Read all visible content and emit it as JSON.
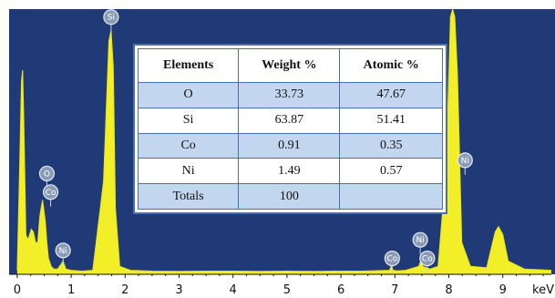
{
  "chart_data": {
    "type": "line",
    "title": "",
    "xlabel": "keV",
    "ylabel": "",
    "xlim": [
      -0.15,
      9.9
    ],
    "ylim": [
      0,
      100
    ],
    "x_ticks": [
      0,
      1,
      2,
      3,
      4,
      5,
      6,
      7,
      8,
      9
    ],
    "x_unit_label": "keV",
    "grid": false,
    "background_color": "#203a78",
    "series_color": "#f2ef28",
    "series": [
      {
        "x": [
          0.0,
          0.04,
          0.08,
          0.1,
          0.12,
          0.16,
          0.2,
          0.26,
          0.3,
          0.34,
          0.38,
          0.42,
          0.47,
          0.52,
          0.55,
          0.58,
          0.63,
          0.68,
          0.75,
          0.82,
          0.85,
          0.9,
          1.0,
          1.2,
          1.4,
          1.6,
          1.7,
          1.74,
          1.78,
          1.82,
          1.9,
          2.1,
          2.5,
          3.0,
          3.5,
          4.0,
          4.5,
          5.0,
          5.5,
          5.9,
          6.4,
          6.9,
          6.93,
          6.97,
          7.05,
          7.2,
          7.44,
          7.48,
          7.52,
          7.65,
          7.8,
          7.95,
          8.03,
          8.07,
          8.11,
          8.16,
          8.24,
          8.4,
          8.7,
          8.86,
          8.92,
          9.0,
          9.1,
          9.4,
          9.9
        ],
        "y": [
          1.5,
          35,
          73,
          77,
          60,
          15,
          13,
          17,
          16,
          12,
          12,
          22,
          28,
          20,
          12,
          6,
          3,
          2,
          2,
          4,
          5,
          2,
          1.5,
          1.2,
          1.5,
          35,
          88,
          92,
          78,
          25,
          3,
          1.5,
          1.2,
          1.1,
          1.2,
          1.2,
          1.1,
          1.2,
          1.1,
          1.2,
          1.2,
          1.5,
          3,
          1.5,
          1.3,
          1.5,
          3,
          5,
          3,
          2,
          3,
          40,
          97,
          100,
          97,
          75,
          12,
          3,
          2.5,
          16,
          18,
          15,
          5,
          2,
          1.5
        ]
      }
    ],
    "peak_labels": [
      {
        "label": "Si",
        "x": 1.74,
        "y": 97
      },
      {
        "label": "O",
        "x": 0.55,
        "y": 38
      },
      {
        "label": "Co",
        "x": 0.62,
        "y": 31
      },
      {
        "label": "Ni",
        "x": 0.85,
        "y": 9
      },
      {
        "label": "Co",
        "x": 6.95,
        "y": 6
      },
      {
        "label": "Ni",
        "x": 7.47,
        "y": 13
      },
      {
        "label": "Co",
        "x": 7.6,
        "y": 6
      },
      {
        "label": "Ni",
        "x": 8.3,
        "y": 43
      }
    ]
  },
  "table": {
    "headers": [
      "Elements",
      "Weight %",
      "Atomic %"
    ],
    "rows": [
      [
        "O",
        "33.73",
        "47.67"
      ],
      [
        "Si",
        "63.87",
        "51.41"
      ],
      [
        "Co",
        "0.91",
        "0.35"
      ],
      [
        "Ni",
        "1.49",
        "0.57"
      ],
      [
        "Totals",
        "100",
        ""
      ]
    ]
  }
}
